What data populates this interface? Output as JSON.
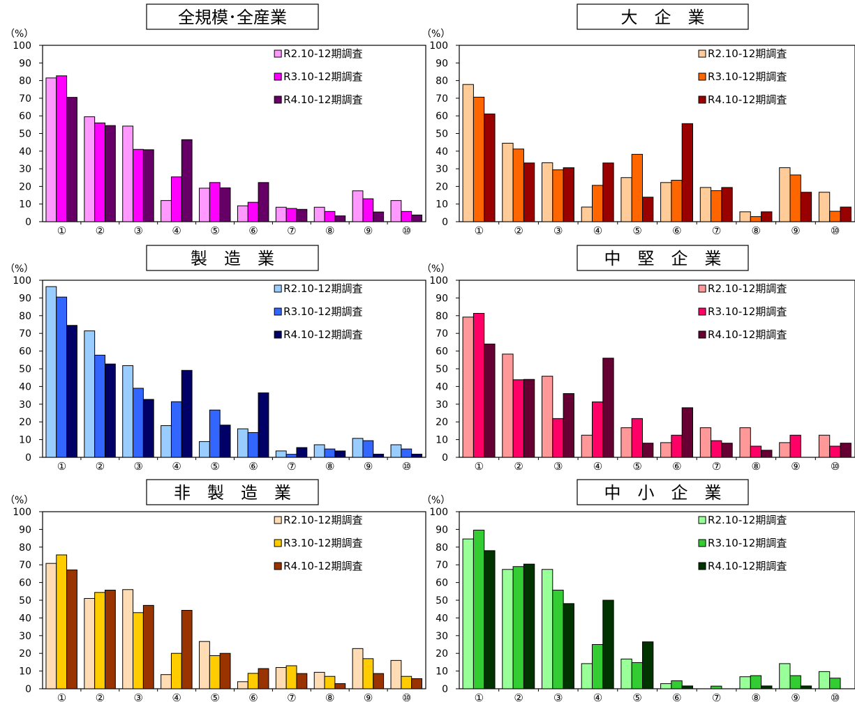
{
  "chart_data": [
    {
      "type": "bar",
      "title": "全規模･全産業",
      "ylabel": "（%）",
      "ylim": [
        0,
        100
      ],
      "yticks": [
        0,
        10,
        20,
        30,
        40,
        50,
        60,
        70,
        80,
        90,
        100
      ],
      "categories": [
        "①",
        "②",
        "③",
        "④",
        "⑤",
        "⑥",
        "⑦",
        "⑧",
        "⑨",
        "⑩"
      ],
      "legend_position": "top-right",
      "series": [
        {
          "name": "R2.10-12期調査",
          "color": "#ff99ff",
          "values": [
            81.5,
            59.5,
            54.2,
            12.0,
            19.0,
            9.0,
            8.2,
            8.2,
            17.5,
            12.0
          ]
        },
        {
          "name": "R3.10-12期調査",
          "color": "#ff00ff",
          "values": [
            82.7,
            56.0,
            41.0,
            25.4,
            22.2,
            11.0,
            7.5,
            5.8,
            13.0,
            5.8
          ]
        },
        {
          "name": "R4.10-12期調査",
          "color": "#660066",
          "values": [
            70.5,
            54.5,
            40.8,
            46.5,
            19.2,
            22.2,
            7.0,
            3.3,
            5.5,
            3.8
          ]
        }
      ]
    },
    {
      "type": "bar",
      "title": "大　企　業",
      "ylabel": "（%）",
      "ylim": [
        0,
        100
      ],
      "yticks": [
        0,
        10,
        20,
        30,
        40,
        50,
        60,
        70,
        80,
        90,
        100
      ],
      "categories": [
        "①",
        "②",
        "③",
        "④",
        "⑤",
        "⑥",
        "⑦",
        "⑧",
        "⑨",
        "⑩"
      ],
      "legend_position": "top-right",
      "series": [
        {
          "name": "R2.10-12期調査",
          "color": "#ffcc99",
          "values": [
            77.8,
            44.5,
            33.4,
            8.3,
            25.0,
            22.2,
            19.4,
            5.6,
            30.6,
            16.7
          ]
        },
        {
          "name": "R3.10-12期調査",
          "color": "#ff6600",
          "values": [
            70.6,
            41.2,
            29.4,
            20.6,
            38.2,
            23.5,
            17.6,
            2.9,
            26.5,
            5.9
          ]
        },
        {
          "name": "R4.10-12期調査",
          "color": "#990000",
          "values": [
            61.1,
            33.3,
            30.6,
            33.3,
            13.9,
            55.6,
            19.4,
            5.6,
            16.7,
            8.3
          ]
        }
      ]
    },
    {
      "type": "bar",
      "title": "製　造　業",
      "ylabel": "（%）",
      "ylim": [
        0,
        100
      ],
      "yticks": [
        0,
        10,
        20,
        30,
        40,
        50,
        60,
        70,
        80,
        90,
        100
      ],
      "categories": [
        "①",
        "②",
        "③",
        "④",
        "⑤",
        "⑥",
        "⑦",
        "⑧",
        "⑨",
        "⑩"
      ],
      "legend_position": "top-right",
      "series": [
        {
          "name": "R2.10-12期調査",
          "color": "#99ccff",
          "values": [
            96.4,
            71.4,
            51.8,
            17.9,
            8.9,
            16.1,
            3.6,
            7.1,
            10.7,
            7.1
          ]
        },
        {
          "name": "R3.10-12期調査",
          "color": "#3366ff",
          "values": [
            90.5,
            57.7,
            39.0,
            31.4,
            26.7,
            14.0,
            1.7,
            4.7,
            9.4,
            4.7
          ]
        },
        {
          "name": "R4.10-12期調査",
          "color": "#000066",
          "values": [
            74.5,
            52.7,
            32.7,
            49.1,
            18.2,
            36.4,
            5.5,
            3.6,
            1.8,
            1.8
          ]
        }
      ]
    },
    {
      "type": "bar",
      "title": "中　堅　企　業",
      "ylabel": "（%）",
      "ylim": [
        0,
        100
      ],
      "yticks": [
        0,
        10,
        20,
        30,
        40,
        50,
        60,
        70,
        80,
        90,
        100
      ],
      "categories": [
        "①",
        "②",
        "③",
        "④",
        "⑤",
        "⑥",
        "⑦",
        "⑧",
        "⑨",
        "⑩"
      ],
      "legend_position": "top-right",
      "series": [
        {
          "name": "R2.10-12期調査",
          "color": "#ff9999",
          "values": [
            79.2,
            58.3,
            45.8,
            12.5,
            16.7,
            8.3,
            16.7,
            16.7,
            8.3,
            12.5
          ]
        },
        {
          "name": "R3.10-12期調査",
          "color": "#ff0066",
          "values": [
            81.3,
            43.8,
            21.9,
            31.3,
            21.9,
            12.5,
            9.4,
            6.3,
            12.5,
            6.3
          ]
        },
        {
          "name": "R4.10-12期調査",
          "color": "#660033",
          "values": [
            64.0,
            44.0,
            36.0,
            56.0,
            8.0,
            28.0,
            8.0,
            4.0,
            0,
            8.0
          ]
        }
      ]
    },
    {
      "type": "bar",
      "title": "非　製　造　業",
      "ylabel": "（%）",
      "ylim": [
        0,
        100
      ],
      "yticks": [
        0,
        10,
        20,
        30,
        40,
        50,
        60,
        70,
        80,
        90,
        100
      ],
      "categories": [
        "①",
        "②",
        "③",
        "④",
        "⑤",
        "⑥",
        "⑦",
        "⑧",
        "⑨",
        "⑩"
      ],
      "legend_position": "top-right",
      "series": [
        {
          "name": "R2.10-12期調査",
          "color": "#ffdcb3",
          "values": [
            70.8,
            51.0,
            56.0,
            8.0,
            26.7,
            4.0,
            12.0,
            9.3,
            22.7,
            16.0
          ]
        },
        {
          "name": "R3.10-12期調査",
          "color": "#ffcc00",
          "values": [
            75.6,
            54.4,
            43.0,
            20.0,
            18.7,
            8.7,
            13.0,
            7.0,
            17.0,
            7.0
          ]
        },
        {
          "name": "R4.10-12期調査",
          "color": "#993300",
          "values": [
            67.1,
            55.7,
            47.1,
            44.3,
            20.0,
            11.4,
            8.6,
            2.9,
            8.6,
            5.7
          ]
        }
      ]
    },
    {
      "type": "bar",
      "title": "中　小　企　業",
      "ylabel": "（%）",
      "ylim": [
        0,
        100
      ],
      "yticks": [
        0,
        10,
        20,
        30,
        40,
        50,
        60,
        70,
        80,
        90,
        100
      ],
      "categories": [
        "①",
        "②",
        "③",
        "④",
        "⑤",
        "⑥",
        "⑦",
        "⑧",
        "⑨",
        "⑩"
      ],
      "legend_position": "top-right",
      "series": [
        {
          "name": "R2.10-12期調査",
          "color": "#99ff99",
          "values": [
            84.6,
            67.4,
            67.4,
            14.2,
            16.8,
            2.9,
            0,
            6.8,
            14.2,
            9.7
          ]
        },
        {
          "name": "R3.10-12期調査",
          "color": "#33cc33",
          "values": [
            89.6,
            69.0,
            55.7,
            25.0,
            14.8,
            4.5,
            1.5,
            7.4,
            7.4,
            6.0
          ]
        },
        {
          "name": "R4.10-12期調査",
          "color": "#003300",
          "values": [
            78.0,
            70.4,
            48.1,
            50.0,
            26.5,
            1.6,
            0,
            1.6,
            1.6,
            0
          ]
        }
      ]
    }
  ]
}
